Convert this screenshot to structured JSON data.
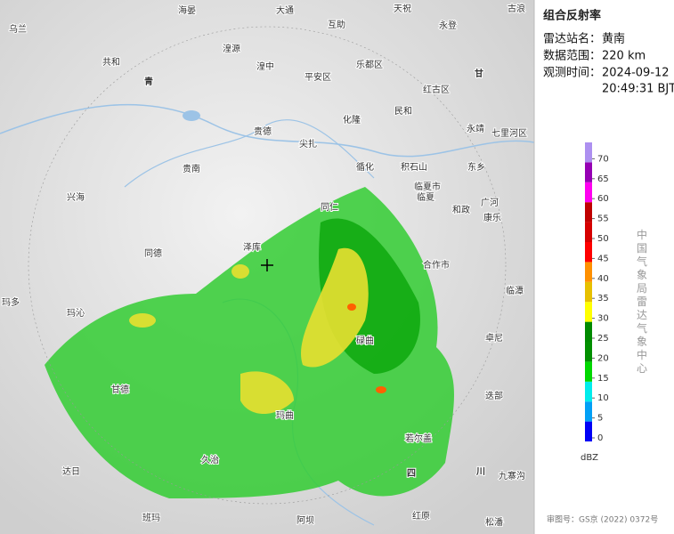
{
  "panel": {
    "title": "组合反射率",
    "station_label": "雷达站名：",
    "station": "黄南",
    "range_label": "数据范围：",
    "range": "220 km",
    "time_label": "观测时间：",
    "date": "2024-09-12",
    "time": "20:49:31 BJT"
  },
  "legend": {
    "unit": "dBZ",
    "ticks": [
      0,
      5,
      10,
      15,
      20,
      25,
      30,
      35,
      40,
      45,
      50,
      55,
      60,
      65,
      70
    ],
    "colors": [
      "#0000f6",
      "#01a0f6",
      "#00ecec",
      "#00d800",
      "#019000",
      "#008a00",
      "#ffff00",
      "#e7c000",
      "#ff9000",
      "#ff0000",
      "#d60000",
      "#c00000",
      "#ff00f0",
      "#9600b4",
      "#ad90f0"
    ]
  },
  "credit": "中国气象局雷达气象中心",
  "footer": "审图号：GS京 (2022) 0372号",
  "places": [
    "乌兰",
    "海晏",
    "大通",
    "天祝",
    "古浪",
    "共和",
    "湟源",
    "湟中",
    "互助",
    "乐都区",
    "平安区",
    "永登",
    "青",
    "甘",
    "红古区",
    "民和",
    "化隆",
    "永靖",
    "贵德",
    "尖扎",
    "七里河区",
    "贵南",
    "循化",
    "积石山",
    "东乡",
    "兴海",
    "临夏市",
    "临夏",
    "广河",
    "和政",
    "康乐",
    "同仁",
    "泽库",
    "同德",
    "玛多",
    "玛沁",
    "合作市",
    "临潭",
    "卓尼",
    "碌曲",
    "甘德",
    "玛曲",
    "迭部",
    "若尔盖",
    "久治",
    "达日",
    "班玛",
    "阿坝",
    "红原",
    "松潘",
    "九寨沟",
    "四",
    "川"
  ]
}
